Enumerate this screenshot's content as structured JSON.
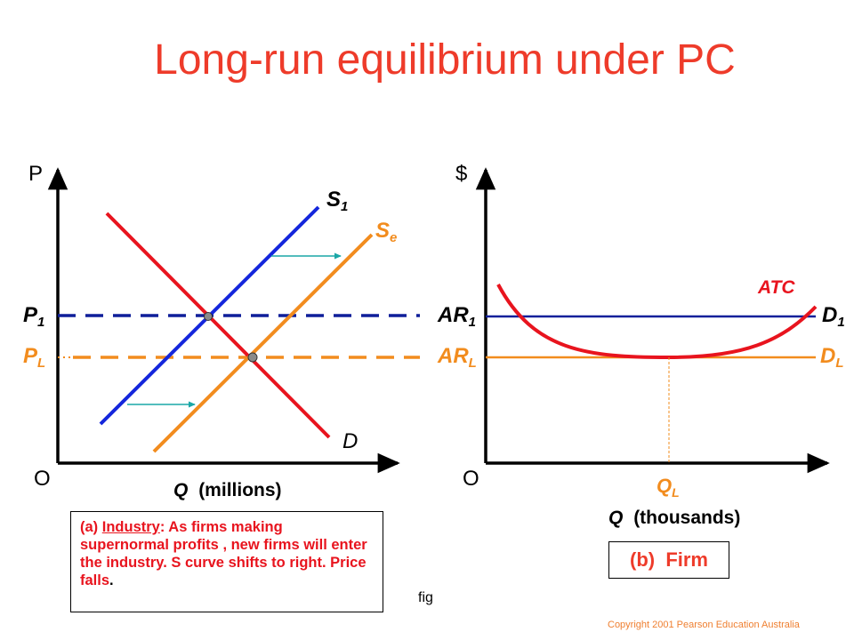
{
  "title": "Long-run equilibrium under PC",
  "industry": {
    "y_axis_label": "P",
    "origin_label": "O",
    "x_axis_label_var": "Q",
    "x_axis_label_unit": "(millions)",
    "price_labels": [
      {
        "main": "P",
        "sub": "1"
      },
      {
        "main": "P",
        "sub": "L"
      }
    ],
    "curve_labels": {
      "S1": {
        "main": "S",
        "sub": "1"
      },
      "Se": {
        "main": "S",
        "sub": "e"
      },
      "D": {
        "main": "D",
        "sub": ""
      }
    },
    "note": {
      "prefix": "(a) ",
      "heading": "Industry",
      "body": ": As firms making supernormal profits , new firms will enter the industry. S curve shifts to right. Price falls",
      "end": "."
    }
  },
  "firm": {
    "y_axis_label": "$",
    "origin_label": "O",
    "x_axis_label_var": "Q",
    "x_axis_label_unit": "(thousands)",
    "left_labels": [
      {
        "main": "AR",
        "sub": "1"
      },
      {
        "main": "AR",
        "sub": "L"
      }
    ],
    "right_labels": [
      {
        "main": "D",
        "sub": "1"
      },
      {
        "main": "D",
        "sub": "L"
      }
    ],
    "atc_label": "ATC",
    "q_label": {
      "main": "Q",
      "sub": "L"
    },
    "caption": "(b)  Firm"
  },
  "fig_label": "fig",
  "copyright": "Copyright 2001 Pearson Education Australia",
  "colors": {
    "title": "#ee3b2a",
    "supply_initial": "#1426dc",
    "supply_new": "#f28c1e",
    "demand": "#e8141e",
    "price_initial_line": "#0f1f9a",
    "price_long_run_line": "#f28c1e",
    "shift_arrow": "#1aa7a7",
    "copyright": "#ef7f30"
  }
}
